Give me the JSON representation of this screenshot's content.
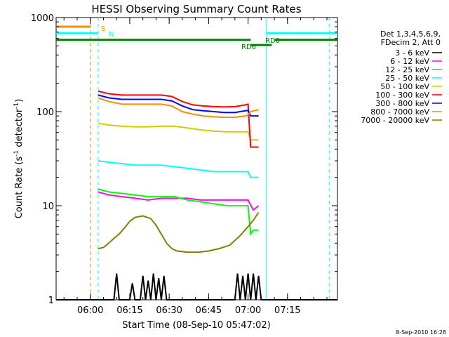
{
  "chart_data": {
    "type": "line",
    "title": "HESSI Observing Summary Count Rates",
    "xlabel": "Start Time (08-Sep-10 05:47:02)",
    "ylabel_main": "Count Rate (s",
    "ylabel_sup1": "-1",
    "ylabel_mid": " detector",
    "ylabel_sup2": "-1",
    "ylabel_end": ")",
    "x_unit": "minutes after 05:47:02",
    "xlim": [
      0,
      107
    ],
    "ylim": [
      1,
      1000
    ],
    "yscale": "log",
    "grid": false,
    "legend_position": "right",
    "x_ticks": [
      {
        "label": "06:00",
        "x": 13
      },
      {
        "label": "06:15",
        "x": 28
      },
      {
        "label": "06:30",
        "x": 43
      },
      {
        "label": "06:45",
        "x": 58
      },
      {
        "label": "07:00",
        "x": 73
      },
      {
        "label": "07:15",
        "x": 88
      }
    ],
    "y_ticks": [
      {
        "label": "1",
        "y": 1
      },
      {
        "label": "10",
        "y": 10
      },
      {
        "label": "100",
        "y": 100
      },
      {
        "label": "1000",
        "y": 1000
      }
    ],
    "legend_header": [
      "Det 1,3,4,5,6,9,",
      "FDecim 2, Att 0"
    ],
    "series": [
      {
        "name": "3 - 6 keV",
        "color": "#000000",
        "points": [
          [
            0,
            1
          ],
          [
            22,
            1
          ],
          [
            23,
            1.9
          ],
          [
            24,
            1
          ],
          [
            28,
            1
          ],
          [
            29,
            1.5
          ],
          [
            30,
            1
          ],
          [
            32,
            1
          ],
          [
            33,
            1.8
          ],
          [
            34,
            1
          ],
          [
            35,
            1.6
          ],
          [
            36,
            1
          ],
          [
            37,
            1.9
          ],
          [
            38,
            1
          ],
          [
            39,
            1.7
          ],
          [
            40,
            1
          ],
          [
            41,
            1.8
          ],
          [
            42,
            1
          ],
          [
            68,
            1
          ],
          [
            69,
            1.9
          ],
          [
            70,
            1
          ],
          [
            71,
            1.8
          ],
          [
            72,
            1
          ],
          [
            73,
            1.9
          ],
          [
            74,
            1
          ],
          [
            75,
            1.9
          ],
          [
            76,
            1
          ],
          [
            77,
            1.8
          ],
          [
            78,
            1
          ],
          [
            107,
            1
          ]
        ]
      },
      {
        "name": "6 - 12 keV",
        "color": "#ff00ff",
        "points": [
          [
            16,
            14
          ],
          [
            20,
            13
          ],
          [
            25,
            12.5
          ],
          [
            30,
            12
          ],
          [
            35,
            11.5
          ],
          [
            40,
            12
          ],
          [
            45,
            12
          ],
          [
            50,
            12
          ],
          [
            55,
            11.5
          ],
          [
            60,
            11.5
          ],
          [
            65,
            11.5
          ],
          [
            70,
            11.5
          ],
          [
            73,
            11.5
          ],
          [
            75,
            9
          ],
          [
            77,
            10
          ]
        ]
      },
      {
        "name": "12 - 25 keV",
        "color": "#00ff00",
        "points": [
          [
            16,
            15
          ],
          [
            20,
            14
          ],
          [
            25,
            13.5
          ],
          [
            30,
            13
          ],
          [
            35,
            12.5
          ],
          [
            40,
            12.5
          ],
          [
            45,
            12.5
          ],
          [
            50,
            11.5
          ],
          [
            55,
            11
          ],
          [
            60,
            10.5
          ],
          [
            65,
            10
          ],
          [
            70,
            10
          ],
          [
            73,
            10
          ],
          [
            74,
            5
          ],
          [
            75,
            5.5
          ],
          [
            77,
            5.5
          ]
        ]
      },
      {
        "name": "25 - 50 keV",
        "color": "#00ffff",
        "points": [
          [
            16,
            30
          ],
          [
            20,
            29
          ],
          [
            25,
            28
          ],
          [
            30,
            27
          ],
          [
            35,
            27
          ],
          [
            40,
            27
          ],
          [
            45,
            26
          ],
          [
            50,
            25
          ],
          [
            55,
            24
          ],
          [
            60,
            23
          ],
          [
            65,
            23
          ],
          [
            70,
            23
          ],
          [
            73,
            23
          ],
          [
            74,
            20
          ],
          [
            77,
            20
          ]
        ]
      },
      {
        "name": "50 - 100 keV",
        "color": "#cccc00",
        "points": [
          [
            16,
            75
          ],
          [
            20,
            72
          ],
          [
            25,
            70
          ],
          [
            30,
            69
          ],
          [
            35,
            69
          ],
          [
            40,
            70
          ],
          [
            45,
            70
          ],
          [
            50,
            67
          ],
          [
            55,
            64
          ],
          [
            60,
            62
          ],
          [
            65,
            61
          ],
          [
            70,
            61
          ],
          [
            73,
            61
          ],
          [
            74,
            50
          ],
          [
            77,
            50
          ]
        ]
      },
      {
        "name": "100 - 300 keV",
        "color": "#ff0000",
        "points": [
          [
            16,
            165
          ],
          [
            20,
            155
          ],
          [
            25,
            150
          ],
          [
            30,
            150
          ],
          [
            35,
            150
          ],
          [
            40,
            150
          ],
          [
            44,
            145
          ],
          [
            48,
            128
          ],
          [
            52,
            118
          ],
          [
            56,
            115
          ],
          [
            60,
            113
          ],
          [
            64,
            112
          ],
          [
            68,
            113
          ],
          [
            72,
            118
          ],
          [
            73,
            120
          ],
          [
            74,
            42
          ],
          [
            77,
            42
          ]
        ]
      },
      {
        "name": "300 - 800 keV",
        "color": "#0000ff",
        "points": [
          [
            16,
            150
          ],
          [
            20,
            140
          ],
          [
            25,
            135
          ],
          [
            30,
            135
          ],
          [
            35,
            135
          ],
          [
            40,
            135
          ],
          [
            44,
            130
          ],
          [
            48,
            115
          ],
          [
            52,
            105
          ],
          [
            56,
            102
          ],
          [
            60,
            100
          ],
          [
            64,
            98
          ],
          [
            68,
            98
          ],
          [
            72,
            102
          ],
          [
            73,
            103
          ],
          [
            74,
            90
          ],
          [
            77,
            90
          ]
        ]
      },
      {
        "name": "800 - 7000 keV",
        "color": "#ff8c00",
        "points": [
          [
            16,
            140
          ],
          [
            20,
            128
          ],
          [
            25,
            120
          ],
          [
            30,
            120
          ],
          [
            35,
            120
          ],
          [
            40,
            120
          ],
          [
            44,
            115
          ],
          [
            48,
            100
          ],
          [
            52,
            94
          ],
          [
            56,
            90
          ],
          [
            60,
            88
          ],
          [
            64,
            87
          ],
          [
            68,
            87
          ],
          [
            72,
            90
          ],
          [
            73,
            92
          ],
          [
            74,
            100
          ],
          [
            77,
            105
          ]
        ]
      },
      {
        "name": "7000 - 20000 keV",
        "color": "#808000",
        "points": [
          [
            16,
            3.5
          ],
          [
            18,
            3.6
          ],
          [
            20,
            4
          ],
          [
            22,
            4.5
          ],
          [
            24,
            5
          ],
          [
            26,
            5.8
          ],
          [
            28,
            6.8
          ],
          [
            30,
            7.5
          ],
          [
            33,
            7.8
          ],
          [
            36,
            7.3
          ],
          [
            38,
            6.2
          ],
          [
            40,
            5
          ],
          [
            42,
            4
          ],
          [
            44,
            3.5
          ],
          [
            46,
            3.3
          ],
          [
            50,
            3.2
          ],
          [
            54,
            3.2
          ],
          [
            58,
            3.3
          ],
          [
            62,
            3.5
          ],
          [
            66,
            3.8
          ],
          [
            70,
            4.8
          ],
          [
            73,
            6
          ],
          [
            75,
            7
          ],
          [
            77,
            8.5
          ]
        ]
      }
    ],
    "status_labels": [
      {
        "text": "S",
        "color": "#ff8c00"
      },
      {
        "text": "N",
        "color": "#00ffff"
      },
      {
        "text": "RD0",
        "color": "#008000"
      },
      {
        "text": "RD6",
        "color": "#008000"
      }
    ],
    "status_bars": [
      {
        "color": "#ff8c00",
        "level": 800,
        "segments": [
          [
            0,
            13
          ]
        ]
      },
      {
        "color": "#00ffff",
        "level": 680,
        "segments": [
          [
            0,
            16
          ],
          [
            80,
            107
          ]
        ]
      },
      {
        "color": "#008000",
        "level": 580,
        "segments": [
          [
            0,
            74
          ],
          [
            83,
            107
          ]
        ]
      },
      {
        "color": "#008000",
        "level": 510,
        "segments": [
          [
            74,
            82
          ]
        ]
      }
    ],
    "vertical_markers": [
      {
        "x": 13,
        "color": "#ff8c00",
        "style": "dashed"
      },
      {
        "x": 16,
        "color": "#00ffff",
        "style": "dashed"
      },
      {
        "x": 80,
        "color": "#00ffff",
        "style": "solid"
      },
      {
        "x": 104,
        "color": "#00ffff",
        "style": "dashed"
      }
    ],
    "footer_date": "8-Sep-2010 16:28"
  }
}
